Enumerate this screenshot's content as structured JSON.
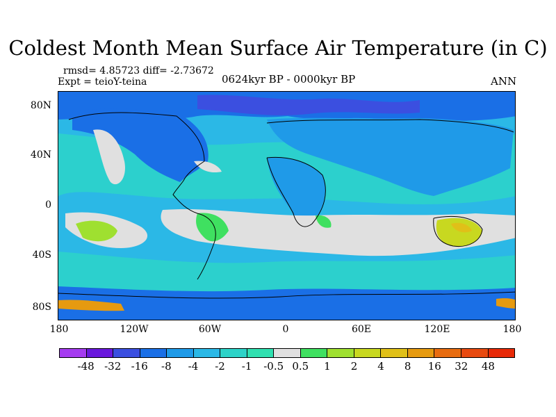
{
  "title": "Coldest Month Mean Surface Air Temperature (in C)",
  "stats": "rmsd= 4.85723 diff= -2.73672",
  "experiment": "Expt = teioY-teina",
  "period": "0624kyr BP - 0000kyr BP",
  "season": "ANN",
  "map": {
    "lat_ticks": [
      "80N",
      "40N",
      "0",
      "40S",
      "80S"
    ],
    "lon_ticks": [
      "180",
      "120W",
      "60W",
      "0",
      "60E",
      "120E",
      "180"
    ]
  },
  "colorbar": {
    "colors": [
      "#a53bf0",
      "#6a18dd",
      "#3b4fe0",
      "#1a6fe6",
      "#1f9ae8",
      "#2bb8e6",
      "#2dd3c8",
      "#30e0b0",
      "#e0e0e0",
      "#3fe060",
      "#9fe030",
      "#c8d820",
      "#e0c018",
      "#e69a10",
      "#e86c10",
      "#e84a10",
      "#e82a08"
    ],
    "labels": [
      "-48",
      "-32",
      "-16",
      "-8",
      "-4",
      "-2",
      "-1",
      "-0.5",
      "0.5",
      "1",
      "2",
      "4",
      "8",
      "16",
      "32",
      "48"
    ]
  }
}
